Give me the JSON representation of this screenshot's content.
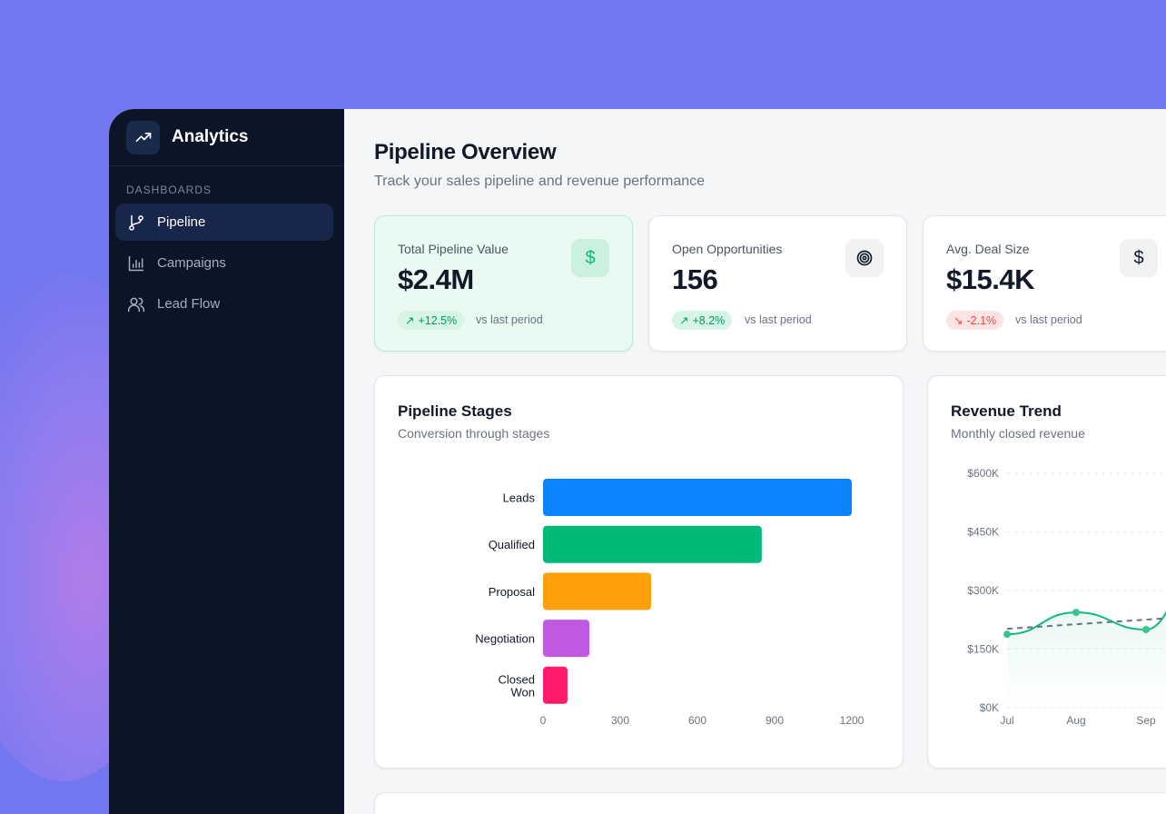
{
  "sidebar": {
    "app_name": "Analytics",
    "app_icon": "trending-up-icon",
    "section_label": "DASHBOARDS",
    "items": [
      {
        "label": "Pipeline",
        "icon": "git-branch-icon",
        "active": true
      },
      {
        "label": "Campaigns",
        "icon": "bar-chart-icon",
        "active": false
      },
      {
        "label": "Lead Flow",
        "icon": "users-icon",
        "active": false
      }
    ]
  },
  "header": {
    "title": "Pipeline Overview",
    "subtitle": "Track your sales pipeline and revenue performance"
  },
  "kpis": [
    {
      "label": "Total Pipeline Value",
      "value": "$2.4M",
      "icon": "dollar-icon",
      "change": "+12.5%",
      "direction": "up",
      "comparison": "vs last period"
    },
    {
      "label": "Open Opportunities",
      "value": "156",
      "icon": "target-icon",
      "change": "+8.2%",
      "direction": "up",
      "comparison": "vs last period"
    },
    {
      "label": "Avg. Deal Size",
      "value": "$15.4K",
      "icon": "dollar-icon",
      "change": "-2.1%",
      "direction": "down",
      "comparison": "vs last period"
    }
  ],
  "colors": {
    "accent": "#10b981",
    "sidebar": "#0c1528",
    "background": "#7377ef",
    "negative": "#ef4444"
  },
  "chart_data": [
    {
      "type": "bar",
      "orientation": "horizontal",
      "title": "Pipeline Stages",
      "subtitle": "Conversion through stages",
      "categories": [
        "Leads",
        "Qualified",
        "Proposal",
        "Negotiation",
        "Closed Won"
      ],
      "values": [
        1200,
        850,
        420,
        180,
        95
      ],
      "colors": [
        "#0a84ff",
        "#00bb77",
        "#ff9f0a",
        "#bf5ae0",
        "#ff1a6e"
      ],
      "xlim": [
        0,
        1200
      ],
      "xticks": [
        "0",
        "300",
        "600",
        "900",
        "1200"
      ],
      "grid": false
    },
    {
      "type": "line",
      "title": "Revenue Trend",
      "subtitle": "Monthly closed revenue",
      "categories": [
        "Jul",
        "Aug",
        "Sep"
      ],
      "values": [
        188000,
        244000,
        200000
      ],
      "ylim": [
        0,
        600000
      ],
      "yticks": [
        "$0K",
        "$150K",
        "$300K",
        "$450K",
        "$600K"
      ],
      "trendline": true,
      "grid": true,
      "color": "#10b981"
    }
  ]
}
